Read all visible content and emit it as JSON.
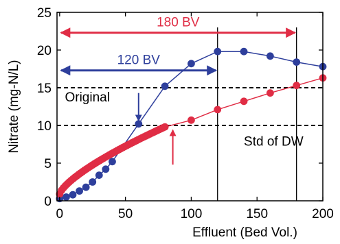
{
  "chart_data": {
    "type": "scatter",
    "title": "",
    "xlabel": "Effluent (Bed Vol.)",
    "ylabel": "Nitrate (mg-N/L)",
    "xlim": [
      -2,
      200
    ],
    "ylim": [
      0,
      25
    ],
    "xticks": [
      0,
      50,
      100,
      150,
      200
    ],
    "yticks": [
      0,
      5,
      10,
      15,
      20,
      25
    ],
    "grid": false,
    "series": [
      {
        "name": "",
        "color": "#2e3f9c",
        "marker": "circle",
        "points": [
          [
            0,
            0.3
          ],
          [
            5,
            0.5
          ],
          [
            10,
            0.8
          ],
          [
            15,
            1.3
          ],
          [
            20,
            1.8
          ],
          [
            25,
            2.5
          ],
          [
            30,
            3.4
          ],
          [
            35,
            4.2
          ],
          [
            40,
            5.2
          ],
          [
            60,
            10.2
          ],
          [
            80,
            15.2
          ],
          [
            100,
            18.2
          ],
          [
            120,
            19.8
          ],
          [
            140,
            19.8
          ],
          [
            160,
            19.2
          ],
          [
            180,
            18.4
          ],
          [
            200,
            17.8
          ]
        ]
      },
      {
        "name": "",
        "color": "#e02d45",
        "marker": "circle",
        "dense_end_x": 80,
        "points": [
          [
            0,
            0.9
          ],
          [
            100,
            10.7
          ],
          [
            120,
            12.1
          ],
          [
            140,
            13.2
          ],
          [
            160,
            14.3
          ],
          [
            180,
            15.3
          ],
          [
            200,
            16.3
          ]
        ]
      }
    ],
    "hlines": [
      {
        "y": 15,
        "style": "dashed",
        "color": "#000000"
      },
      {
        "y": 10,
        "style": "dashed",
        "color": "#000000"
      }
    ],
    "vlines": [
      {
        "x": 120,
        "color": "#000000"
      },
      {
        "x": 180,
        "color": "#000000"
      }
    ],
    "annotations": {
      "bv180": {
        "label": "180 BV",
        "x0": 0,
        "x1": 180,
        "y": 22.3,
        "color": "#e02d45"
      },
      "bv120": {
        "label": "120 BV",
        "x0": 0,
        "x1": 120,
        "y": 17.3,
        "color": "#2e3f9c"
      },
      "original": {
        "label": "Original",
        "arrow_x": 60,
        "arrow_from_y": 14.3,
        "arrow_to_y": 10.6,
        "color": "#2e3f9c"
      },
      "std": {
        "label": "Std of DW",
        "arrow_x": 86,
        "arrow_from_y": 4.8,
        "arrow_to_y": 9.4,
        "color": "#e02d45"
      }
    }
  }
}
